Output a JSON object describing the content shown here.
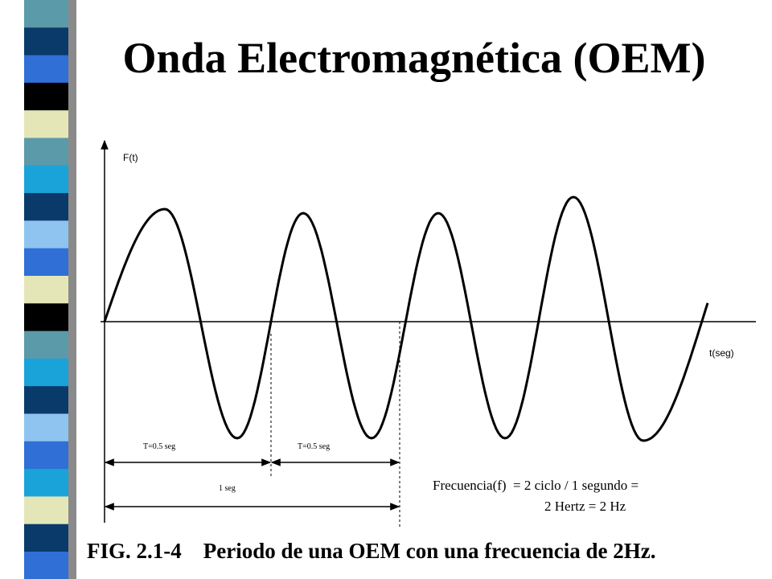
{
  "title": "Onda Electromagnética (OEM)",
  "axes": {
    "y_label": "F(t)",
    "x_label": "t(seg)"
  },
  "annotations": {
    "period_1": "T=0.5 seg",
    "period_2": "T=0.5 seg",
    "total": "1 seg",
    "formula_line_1": "Frecuencia(f)  = 2 ciclo / 1 segundo =",
    "formula_line_2": "2 Hertz = 2 Hz"
  },
  "caption": "FIG. 2.1-4    Periodo de una OEM con una frecuencia de 2Hz."
}
